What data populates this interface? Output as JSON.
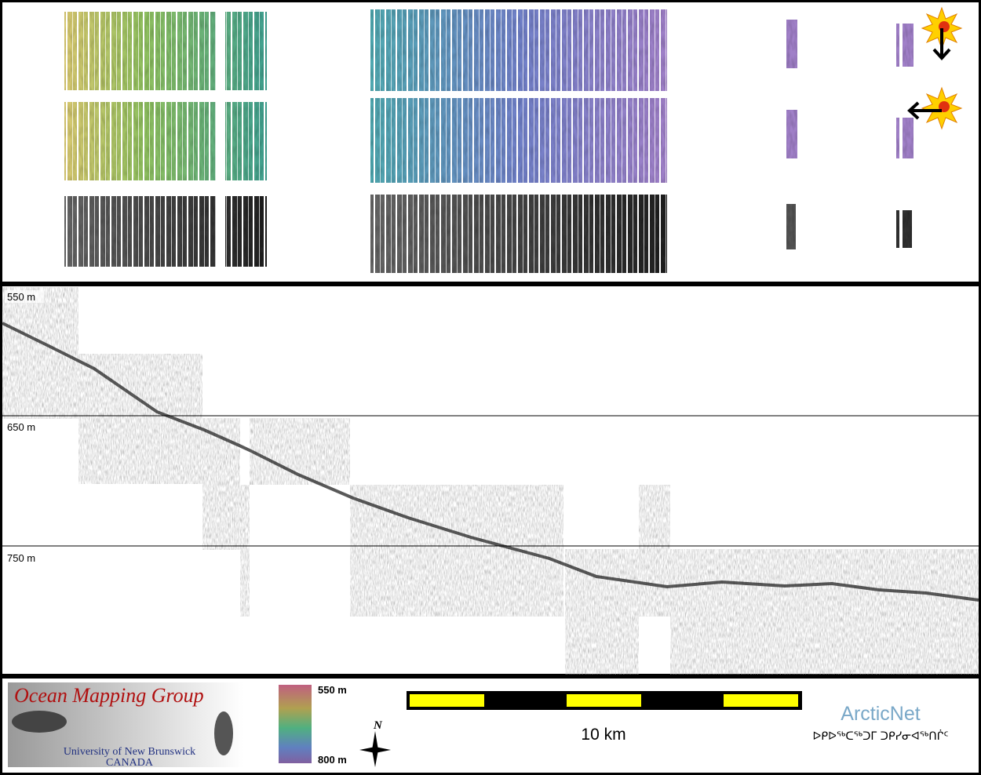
{
  "profile": {
    "depth_labels": [
      "550 m",
      "650 m",
      "750 m"
    ]
  },
  "legend": {
    "logo": {
      "title": "Ocean Mapping Group",
      "university": "University of New Brunswick",
      "country": "CANADA"
    },
    "colorbar": {
      "top": "550 m",
      "bottom": "800 m"
    },
    "north": "N",
    "scale_bar": "10 km",
    "arcticnet": {
      "name": "ArcticNet",
      "inuktitut": "ᐅᑭᐅᖅᑕᖅᑐᒥ ᑐᑭᓯᓂᐊᖅᑎᒌᑦ"
    }
  }
}
